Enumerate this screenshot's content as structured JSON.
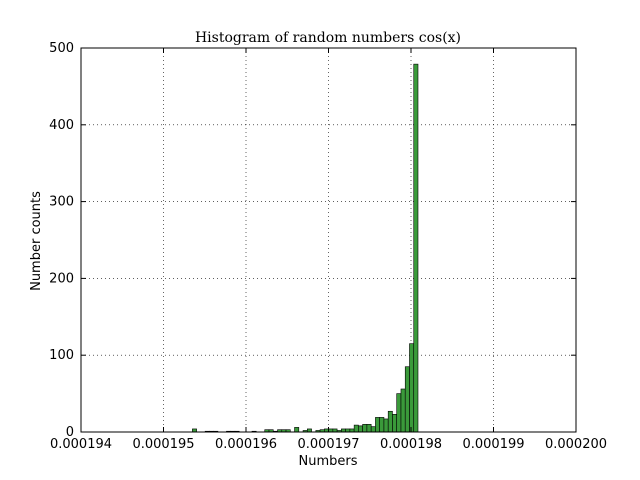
{
  "chart_data": {
    "type": "bar",
    "title": "Histogram of random numbers cos(x)",
    "xlabel": "Numbers",
    "ylabel": "Number counts",
    "xlim": [
      0.000194,
      0.0002
    ],
    "ylim": [
      0,
      500
    ],
    "xticks": [
      0.000194,
      0.000195,
      0.000196,
      0.000197,
      0.000198,
      0.000199,
      0.0002
    ],
    "xtick_labels": [
      "0.000194",
      "0.000195",
      "0.000196",
      "0.000197",
      "0.000198",
      "0.000199",
      "0.000200"
    ],
    "yticks": [
      0,
      100,
      200,
      300,
      400,
      500
    ],
    "ytick_labels": [
      "0",
      "100",
      "200",
      "300",
      "400",
      "500"
    ],
    "grid": true,
    "bar_color": "#3a9a3a",
    "bin_start": 0.00019535,
    "bin_width": 5.16e-08,
    "counts": [
      4,
      0,
      0,
      1,
      1,
      1,
      0,
      0,
      1,
      1,
      1,
      0,
      0,
      0,
      1,
      0,
      0,
      3,
      3,
      1,
      3,
      3,
      3,
      0,
      6,
      0,
      2,
      4,
      0,
      2,
      3,
      4,
      4,
      4,
      2,
      4,
      4,
      4,
      9,
      8,
      10,
      10,
      7,
      19,
      19,
      17,
      27,
      23,
      50,
      56,
      85,
      115,
      479
    ]
  }
}
